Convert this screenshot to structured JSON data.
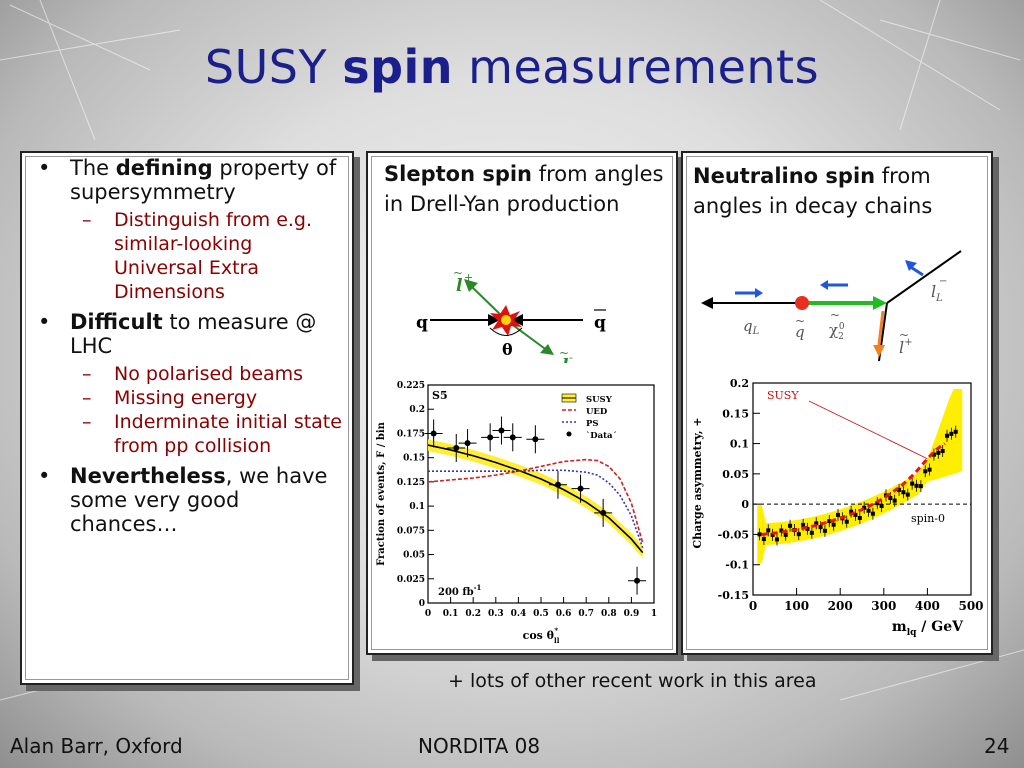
{
  "title": {
    "part1": "SUSY ",
    "bold": "spin",
    "part2": " measurements"
  },
  "left_panel": {
    "items": [
      {
        "pre": "The ",
        "bold": "defining",
        "post": " property of supersymmetry",
        "subitems": [
          "Distinguish from e.g. similar-looking Universal Extra Dimensions"
        ]
      },
      {
        "pre": "",
        "bold": "Difficult",
        "post": " to measure @ LHC",
        "subitems": [
          "No polarised beams",
          "Missing energy",
          "Inderminate initial state from pp collision"
        ]
      },
      {
        "pre": "",
        "bold": "Nevertheless",
        "post": ", we have some very good chances…",
        "subitems": []
      }
    ]
  },
  "middle_panel": {
    "bold": "Slepton spin",
    "text": " from angles in Drell-Yan production",
    "diagram": {
      "q_left": "q",
      "q_right": "q",
      "lplus": "l",
      "lminus": "l",
      "theta": "θ"
    }
  },
  "right_panel": {
    "bold": "Neutralino spin",
    "text": " from angles in decay chains",
    "diagram": {
      "qL": "q",
      "qL_sub": "L",
      "q_tilde": "q",
      "chi": "χ",
      "chi_sub": "2",
      "chi_sup": "0",
      "lL": "l",
      "lL_sub": "L",
      "lplus": "l",
      "lplus_sup": "+"
    }
  },
  "chart_left": {
    "chart_data": {
      "type": "line",
      "panel_label": "S5",
      "lumi": "200 fb",
      "lumi_sup": "-1",
      "xlabel": "cos θ",
      "xlabel_sub": "ll",
      "xlabel_sup": "*",
      "ylabel": "Fraction of events, F / bin",
      "xlim": [
        0,
        1
      ],
      "ylim": [
        0,
        0.225
      ],
      "xticks": [
        "0",
        "0.1",
        "0.2",
        "0.3",
        "0.4",
        "0.5",
        "0.6",
        "0.7",
        "0.8",
        "0.9",
        "1"
      ],
      "yticks": [
        "0",
        "0.025",
        "0.05",
        "0.075",
        "0.1",
        "0.125",
        "0.15",
        "0.175",
        "0.2",
        "0.225"
      ],
      "legend": [
        "SUSY",
        "UED",
        "PS",
        "`Data´"
      ],
      "series": [
        {
          "name": "SUSY",
          "x": [
            0,
            0.1,
            0.2,
            0.3,
            0.4,
            0.5,
            0.6,
            0.7,
            0.8,
            0.9,
            0.95
          ],
          "y": [
            0.163,
            0.158,
            0.152,
            0.145,
            0.137,
            0.128,
            0.117,
            0.104,
            0.088,
            0.066,
            0.052
          ]
        },
        {
          "name": "UED",
          "x": [
            0,
            0.1,
            0.2,
            0.3,
            0.4,
            0.5,
            0.6,
            0.7,
            0.75,
            0.8,
            0.85,
            0.9,
            0.95
          ],
          "y": [
            0.125,
            0.127,
            0.129,
            0.132,
            0.136,
            0.141,
            0.146,
            0.148,
            0.147,
            0.141,
            0.128,
            0.103,
            0.062
          ]
        },
        {
          "name": "PS",
          "x": [
            0,
            0.1,
            0.2,
            0.3,
            0.4,
            0.5,
            0.6,
            0.7,
            0.75,
            0.8,
            0.85,
            0.9,
            0.95
          ],
          "y": [
            0.136,
            0.136,
            0.136,
            0.136,
            0.136,
            0.137,
            0.137,
            0.135,
            0.132,
            0.124,
            0.111,
            0.09,
            0.057
          ]
        },
        {
          "name": "`Data´",
          "x": [
            0.025,
            0.125,
            0.175,
            0.275,
            0.325,
            0.375,
            0.475,
            0.575,
            0.675,
            0.775,
            0.925
          ],
          "y": [
            0.175,
            0.16,
            0.165,
            0.171,
            0.178,
            0.171,
            0.169,
            0.122,
            0.118,
            0.093,
            0.023
          ]
        }
      ]
    }
  },
  "chart_right": {
    "chart_data": {
      "type": "line",
      "xlabel": "m",
      "xlabel_sub": "lq",
      "xlabel_unit": " / GeV",
      "ylabel": "Charge asymmetry, +",
      "xlim": [
        0,
        500
      ],
      "ylim": [
        -0.15,
        0.2
      ],
      "xticks": [
        "0",
        "100",
        "200",
        "300",
        "400",
        "500"
      ],
      "yticks": [
        "-0.15",
        "-0.1",
        "-0.05",
        "0",
        "0.05",
        "0.1",
        "0.15",
        "0.2"
      ],
      "labels": [
        "SUSY",
        "spin-0"
      ],
      "series": [
        {
          "name": "SUSY",
          "x": [
            20,
            60,
            100,
            140,
            180,
            220,
            260,
            300,
            340,
            370,
            400,
            420,
            440
          ],
          "y": [
            -0.05,
            -0.047,
            -0.042,
            -0.036,
            -0.028,
            -0.018,
            -0.006,
            0.01,
            0.03,
            0.05,
            0.075,
            0.09,
            0.1
          ]
        },
        {
          "name": "spin-0",
          "x": [
            0,
            500
          ],
          "y": [
            0,
            0
          ]
        }
      ]
    }
  },
  "footnote": "+ lots of other recent work in this area",
  "footer": {
    "left": "Alan Barr, Oxford",
    "center": "NORDITA 08",
    "right": "24"
  }
}
